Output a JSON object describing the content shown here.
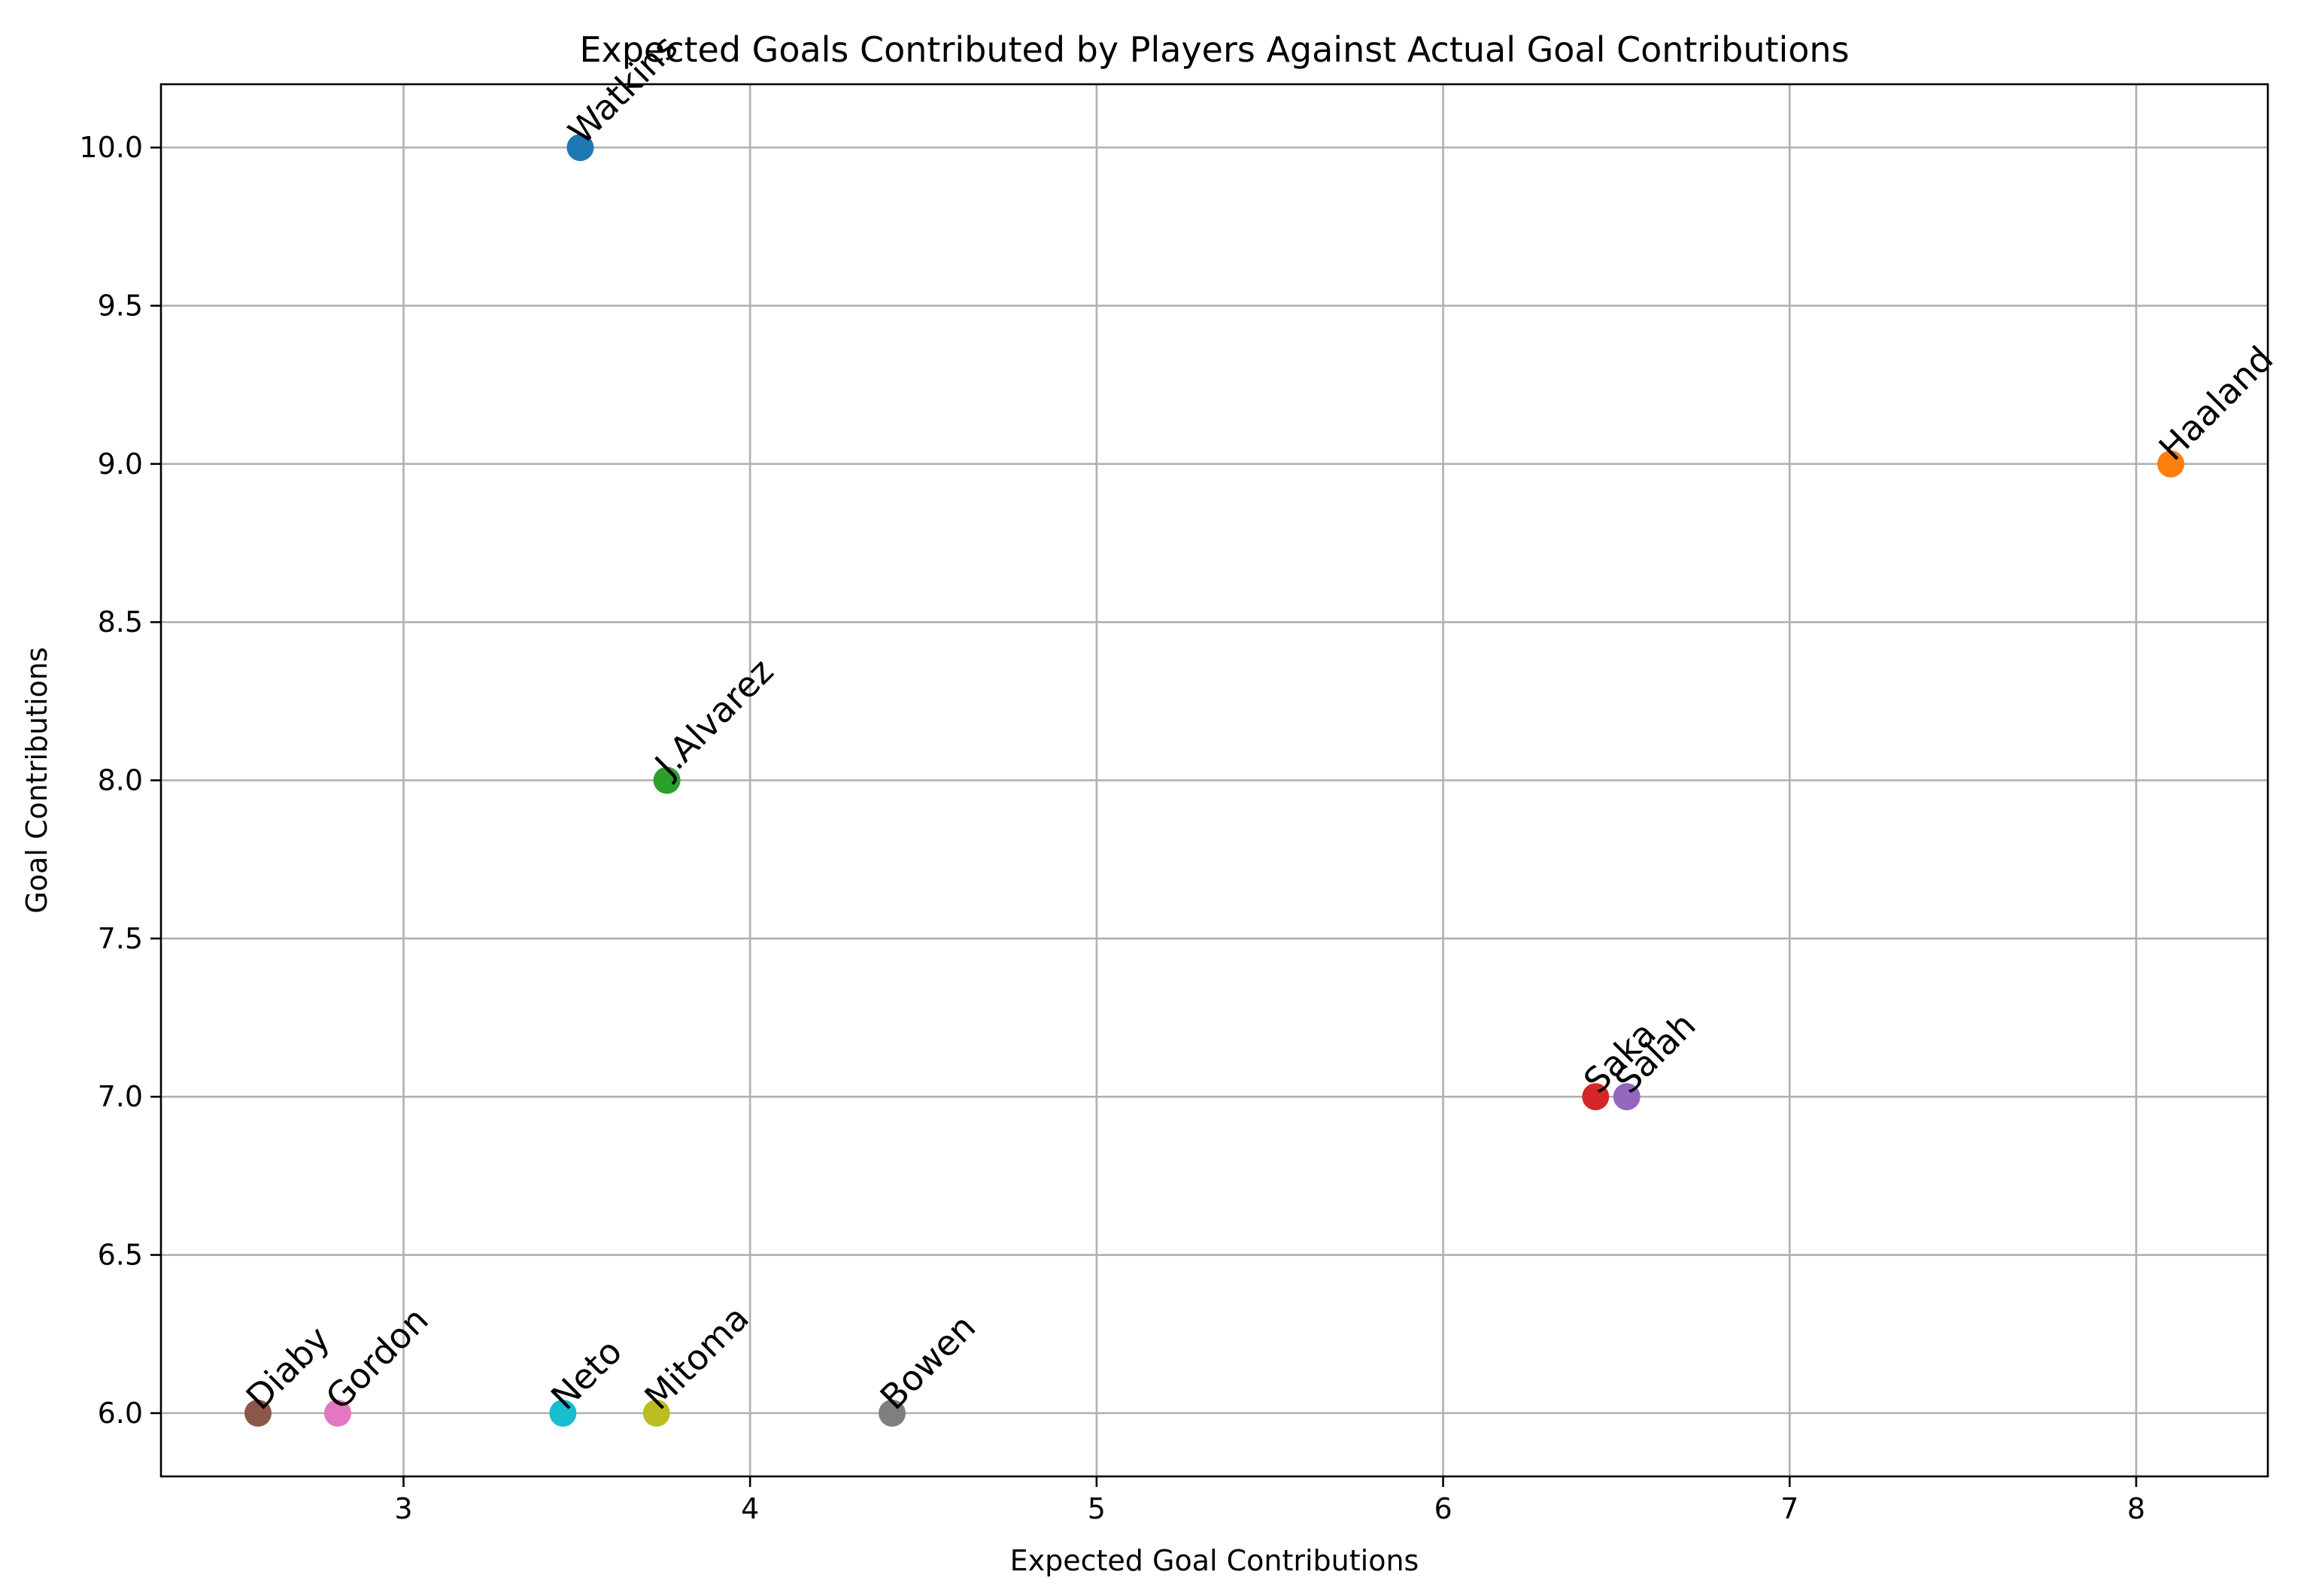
{
  "chart_data": {
    "type": "scatter",
    "title": "Expected Goals Contributed by Players Against Actual Goal Contributions",
    "xlabel": "Expected Goal Contributions",
    "ylabel": "Goal Contributions",
    "xlim": [
      2.3,
      8.38
    ],
    "ylim": [
      5.8,
      10.2
    ],
    "xticks": [
      3,
      4,
      5,
      6,
      7,
      8
    ],
    "xtick_labels": [
      "3",
      "4",
      "5",
      "6",
      "7",
      "8"
    ],
    "yticks": [
      6.0,
      6.5,
      7.0,
      7.5,
      8.0,
      8.5,
      9.0,
      9.5,
      10.0
    ],
    "ytick_labels": [
      "6.0",
      "6.5",
      "7.0",
      "7.5",
      "8.0",
      "8.5",
      "9.0",
      "9.5",
      "10.0"
    ],
    "grid": true,
    "points": [
      {
        "label": "Watkins",
        "x": 3.51,
        "y": 10.0,
        "color": "#1f77b4"
      },
      {
        "label": "Haaland",
        "x": 8.1,
        "y": 9.0,
        "color": "#ff7f0e"
      },
      {
        "label": "J.Alvarez",
        "x": 3.76,
        "y": 8.0,
        "color": "#2ca02c"
      },
      {
        "label": "Saka",
        "x": 6.44,
        "y": 7.0,
        "color": "#d62728"
      },
      {
        "label": "Salah",
        "x": 6.53,
        "y": 7.0,
        "color": "#9467bd"
      },
      {
        "label": "Diaby",
        "x": 2.58,
        "y": 6.0,
        "color": "#8c564b"
      },
      {
        "label": "Gordon",
        "x": 2.81,
        "y": 6.0,
        "color": "#e377c2"
      },
      {
        "label": "Bowen",
        "x": 4.41,
        "y": 6.0,
        "color": "#7f7f7f"
      },
      {
        "label": "Mitoma",
        "x": 3.73,
        "y": 6.0,
        "color": "#bcbd22"
      },
      {
        "label": "Neto",
        "x": 3.46,
        "y": 6.0,
        "color": "#17becf"
      }
    ]
  }
}
